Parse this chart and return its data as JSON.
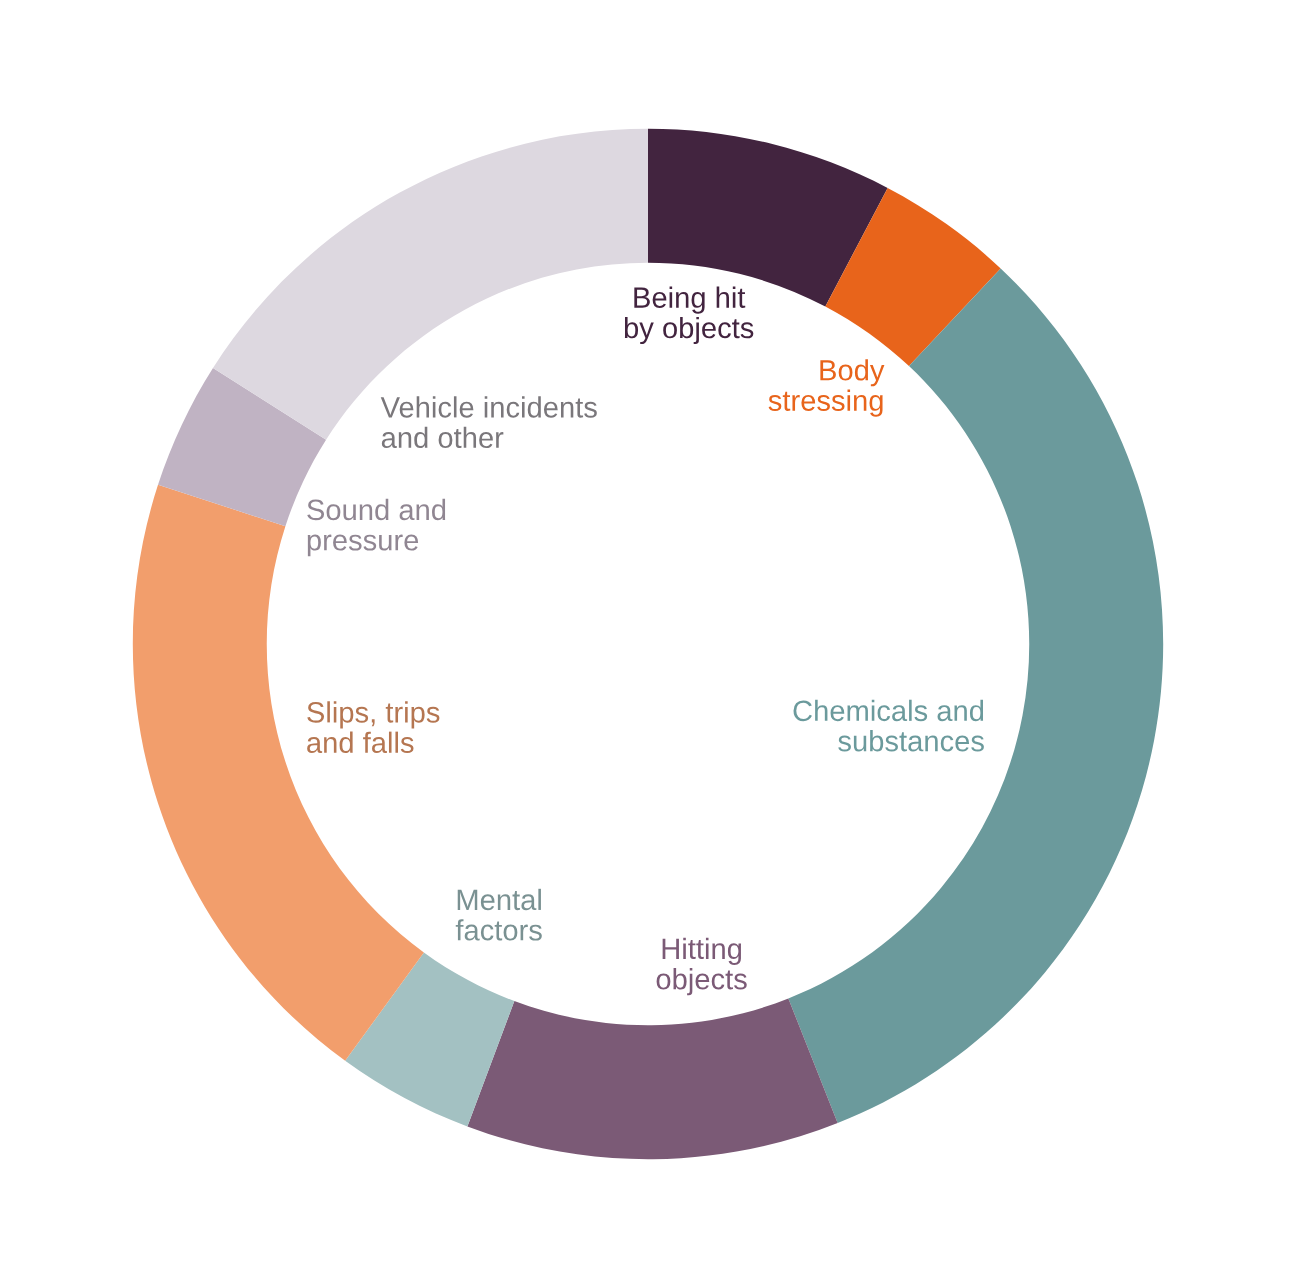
{
  "chart_data": {
    "type": "donut",
    "categories": [
      "Being hit\nby objects",
      "Body\nstressing",
      "Chemicals and\nsubstances",
      "Hitting\nobjects",
      "Mental\nfactors",
      "Slips, trips\nand falls",
      "Sound and\npressure",
      "Vehicle incidents\nand other"
    ],
    "values": [
      7.7,
      4.3,
      32.0,
      11.7,
      4.3,
      20.0,
      4.0,
      16.0
    ],
    "colors": [
      "#42243f",
      "#e8641b",
      "#6b9a9c",
      "#7b5a76",
      "#a3c1c2",
      "#f29e6c",
      "#c0b3c3",
      "#ddd8e0"
    ],
    "legend": false
  }
}
